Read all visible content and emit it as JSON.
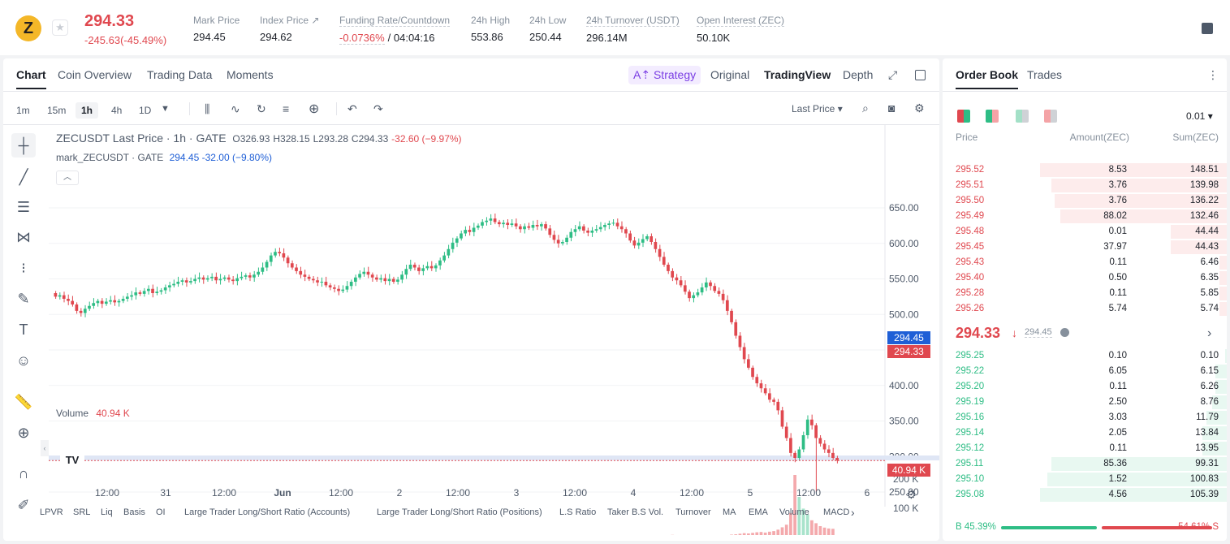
{
  "ticker": {
    "logo_glyph": "Z",
    "last_price": "294.33",
    "change": "-245.63(-45.49%)",
    "stats": [
      {
        "label": "Mark Price",
        "value": "294.45",
        "dashed": false
      },
      {
        "label": "Index Price ↗",
        "value": "294.62",
        "dashed": false
      },
      {
        "label": "Funding Rate/Countdown",
        "value": "",
        "dashed": true
      },
      {
        "label": "24h High",
        "value": "553.86",
        "dashed": false
      },
      {
        "label": "24h Low",
        "value": "250.44",
        "dashed": false
      },
      {
        "label": "24h Turnover (USDT)",
        "value": "296.14M",
        "dashed": true
      },
      {
        "label": "Open Interest (ZEC)",
        "value": "50.10K",
        "dashed": true
      }
    ],
    "funding_rate": "-0.0736%",
    "countdown": "/ 04:04:16"
  },
  "chart_tabs": [
    "Chart",
    "Coin Overview",
    "Trading Data",
    "Moments"
  ],
  "view_tabs": {
    "strategy": "Strategy",
    "original": "Original",
    "tradingview": "TradingView",
    "depth": "Depth"
  },
  "timeframes": [
    "1m",
    "15m",
    "1h",
    "4h",
    "1D"
  ],
  "active_timeframe": "1h",
  "price_type": "Last Price",
  "legend": {
    "symbol": "ZECUSDT Last Price · 1h · GATE",
    "o": "O326.93",
    "h": "H328.15",
    "l": "L293.28",
    "c": "C294.33",
    "chg": "-32.60 (−9.97%)",
    "mark_label": "mark_ZECUSDT · GATE",
    "mark_vals": "294.45  -32.00 (−9.80%)"
  },
  "volume_legend": {
    "label": "Volume",
    "value": "40.94 K"
  },
  "tv_logo": "TV",
  "price_tags": {
    "mark": "294.45",
    "last": "294.33",
    "volume": "40.94 K"
  },
  "indicators": [
    "LPVR",
    "SRL",
    "Liq",
    "Basis",
    "OI",
    "Large Trader Long/Short Ratio (Accounts)",
    "Large Trader Long/Short Ratio (Positions)",
    "L.S Ratio",
    "Taker B.S Vol.",
    "Turnover",
    "MA",
    "EMA",
    "Volume",
    "MACD"
  ],
  "colors": {
    "up": "#2ebd85",
    "down": "#e0484f",
    "mark_tag": "#1f5fd6",
    "strategy": "#7b3fe4"
  },
  "chart_data": {
    "type": "candlestick",
    "y_ticks": [
      "650.00",
      "600.00",
      "550.00",
      "500.00",
      "450.00",
      "400.00",
      "350.00",
      "300.00",
      "250.00"
    ],
    "ylim": [
      250,
      650
    ],
    "x_ticks": [
      "12:00",
      "31",
      "12:00",
      "Jun",
      "12:00",
      "2",
      "12:00",
      "3",
      "12:00",
      "4",
      "12:00",
      "5",
      "12:00",
      "6"
    ],
    "volume_ticks": [
      "200 K",
      "100 K"
    ],
    "closes": [
      525,
      527,
      522,
      519,
      514,
      505,
      502,
      508,
      512,
      516,
      519,
      515,
      518,
      520,
      517,
      519,
      522,
      525,
      527,
      531,
      529,
      533,
      536,
      530,
      532,
      534,
      538,
      541,
      543,
      546,
      548,
      545,
      547,
      550,
      552,
      549,
      551,
      553,
      548,
      550,
      552,
      549,
      547,
      551,
      553,
      555,
      552,
      556,
      560,
      566,
      574,
      583,
      588,
      586,
      580,
      572,
      566,
      561,
      556,
      553,
      550,
      548,
      545,
      546,
      541,
      538,
      536,
      533,
      535,
      540,
      546,
      552,
      557,
      560,
      556,
      552,
      549,
      551,
      547,
      550,
      546,
      549,
      556,
      564,
      570,
      566,
      561,
      565,
      568,
      565,
      569,
      576,
      583,
      592,
      601,
      607,
      614,
      619,
      616,
      622,
      625,
      630,
      632,
      635,
      630,
      627,
      629,
      626,
      628,
      624,
      620,
      624,
      622,
      626,
      624,
      627,
      621,
      612,
      605,
      600,
      602,
      608,
      616,
      620,
      624,
      618,
      615,
      618,
      620,
      623,
      626,
      628,
      629,
      624,
      620,
      614,
      604,
      597,
      601,
      606,
      610,
      602,
      592,
      581,
      570,
      561,
      552,
      548,
      541,
      532,
      523,
      527,
      531,
      538,
      545,
      540,
      533,
      529,
      520,
      505,
      489,
      470,
      454,
      437,
      425,
      412,
      403,
      396,
      389,
      380,
      377,
      365,
      342,
      326,
      305,
      298,
      310,
      330,
      352,
      344,
      326,
      318,
      310,
      305,
      298,
      294.33
    ],
    "mark_closes_note": "",
    "volumes_k": [
      8,
      6,
      7,
      9,
      5,
      10,
      7,
      6,
      5,
      8,
      7,
      6,
      9,
      7,
      6,
      8,
      5,
      6,
      7,
      8,
      6,
      5,
      7,
      6,
      5,
      7,
      8,
      6,
      5,
      7,
      6,
      5,
      7,
      8,
      6,
      5,
      7,
      6,
      5,
      6,
      7,
      5,
      6,
      7,
      8,
      6,
      5,
      7,
      9,
      11,
      13,
      10,
      9,
      8,
      7,
      6,
      5,
      6,
      7,
      5,
      6,
      7,
      5,
      6,
      7,
      8,
      6,
      5,
      7,
      8,
      9,
      10,
      8,
      7,
      6,
      7,
      6,
      5,
      6,
      7,
      6,
      7,
      8,
      10,
      9,
      8,
      7,
      8,
      7,
      6,
      7,
      9,
      11,
      12,
      13,
      12,
      11,
      10,
      9,
      10,
      11,
      10,
      9,
      8,
      9,
      8,
      7,
      8,
      9,
      8,
      7,
      8,
      9,
      8,
      7,
      8,
      9,
      12,
      14,
      13,
      11,
      10,
      12,
      11,
      10,
      9,
      10,
      11,
      10,
      9,
      11,
      12,
      10,
      9,
      11,
      14,
      18,
      16,
      14,
      13,
      12,
      14,
      15,
      16,
      17,
      19,
      20,
      18,
      19,
      18,
      16,
      17,
      15,
      16,
      17,
      16,
      15,
      16,
      17,
      19,
      21,
      22,
      24,
      26,
      25,
      27,
      29,
      30,
      28,
      31,
      33,
      38,
      46,
      55,
      95,
      225,
      150,
      110,
      90,
      70,
      60,
      50,
      45,
      42,
      40.94
    ]
  },
  "orderbook": {
    "tabs": [
      "Order Book",
      "Trades"
    ],
    "precision": "0.01",
    "cols": [
      "Price",
      "Amount(ZEC)",
      "Sum(ZEC)"
    ],
    "asks": [
      {
        "p": "295.52",
        "a": "8.53",
        "s": "148.51",
        "fill": 1.0
      },
      {
        "p": "295.51",
        "a": "3.76",
        "s": "139.98",
        "fill": 0.94
      },
      {
        "p": "295.50",
        "a": "3.76",
        "s": "136.22",
        "fill": 0.92
      },
      {
        "p": "295.49",
        "a": "88.02",
        "s": "132.46",
        "fill": 0.89
      },
      {
        "p": "295.48",
        "a": "0.01",
        "s": "44.44",
        "fill": 0.3
      },
      {
        "p": "295.45",
        "a": "37.97",
        "s": "44.43",
        "fill": 0.3
      },
      {
        "p": "295.43",
        "a": "0.11",
        "s": "6.46",
        "fill": 0.04
      },
      {
        "p": "295.40",
        "a": "0.50",
        "s": "6.35",
        "fill": 0.04
      },
      {
        "p": "295.28",
        "a": "0.11",
        "s": "5.85",
        "fill": 0.04
      },
      {
        "p": "295.26",
        "a": "5.74",
        "s": "5.74",
        "fill": 0.04
      }
    ],
    "mid": {
      "last": "294.33",
      "mark": "294.45"
    },
    "bids": [
      {
        "p": "295.25",
        "a": "0.10",
        "s": "0.10",
        "fill": 0.01
      },
      {
        "p": "295.22",
        "a": "6.05",
        "s": "6.15",
        "fill": 0.06
      },
      {
        "p": "295.20",
        "a": "0.11",
        "s": "6.26",
        "fill": 0.06
      },
      {
        "p": "295.19",
        "a": "2.50",
        "s": "8.76",
        "fill": 0.08
      },
      {
        "p": "295.16",
        "a": "3.03",
        "s": "11.79",
        "fill": 0.11
      },
      {
        "p": "295.14",
        "a": "2.05",
        "s": "13.84",
        "fill": 0.13
      },
      {
        "p": "295.12",
        "a": "0.11",
        "s": "13.95",
        "fill": 0.13
      },
      {
        "p": "295.11",
        "a": "85.36",
        "s": "99.31",
        "fill": 0.94
      },
      {
        "p": "295.10",
        "a": "1.52",
        "s": "100.83",
        "fill": 0.96
      },
      {
        "p": "295.08",
        "a": "4.56",
        "s": "105.39",
        "fill": 1.0
      }
    ],
    "ratio": {
      "buy": "B 45.39%",
      "sell": "54.61% S",
      "buy_fraction": 0.4539
    }
  }
}
